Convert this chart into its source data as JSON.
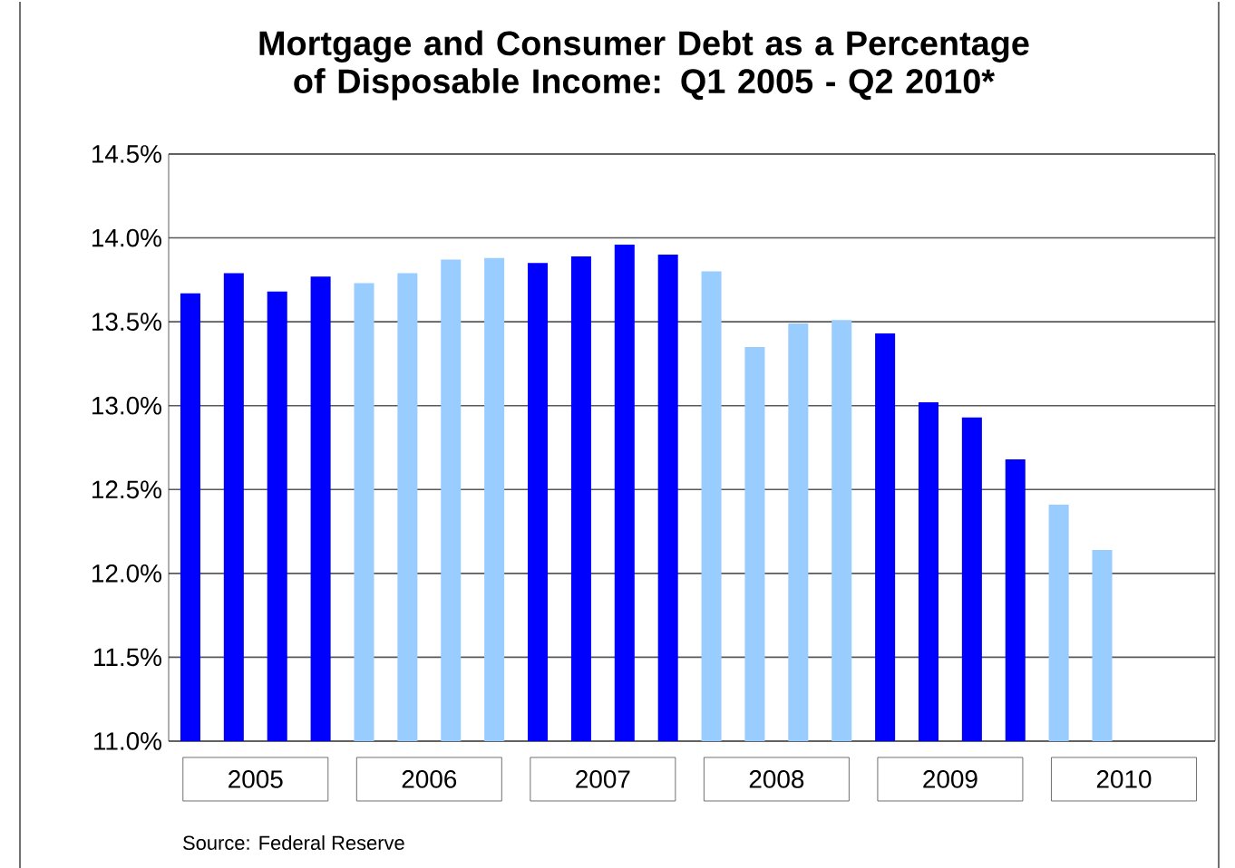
{
  "chart_data": {
    "type": "bar",
    "title": "Mortgage and Consumer Debt as a Percentage of Disposable Income: Q1 2005 - Q2 2010*",
    "categories": [
      "2005",
      "2006",
      "2007",
      "2008",
      "2009",
      "2010"
    ],
    "series": [
      {
        "values": [
          13.67,
          13.73,
          13.85,
          13.8,
          13.43,
          12.41
        ],
        "colors": [
          "#0000ff",
          "#99ccff",
          "#0000ff",
          "#99ccff",
          "#0000ff",
          "#99ccff"
        ]
      },
      {
        "values": [
          13.79,
          13.79,
          13.89,
          13.35,
          13.02,
          12.14
        ],
        "colors": [
          "#0000ff",
          "#99ccff",
          "#0000ff",
          "#99ccff",
          "#0000ff",
          "#99ccff"
        ]
      },
      {
        "values": [
          13.68,
          13.87,
          13.96,
          13.49,
          12.93,
          null
        ],
        "colors": [
          "#0000ff",
          "#99ccff",
          "#0000ff",
          "#99ccff",
          "#0000ff",
          "#99ccff"
        ]
      },
      {
        "values": [
          13.77,
          13.88,
          13.9,
          13.51,
          12.68,
          null
        ],
        "colors": [
          "#0000ff",
          "#99ccff",
          "#0000ff",
          "#99ccff",
          "#0000ff",
          "#99ccff"
        ]
      }
    ],
    "ylim": [
      11.0,
      14.5
    ],
    "yticks": [
      {
        "value": 11.0,
        "label": "11.0%"
      },
      {
        "value": 11.5,
        "label": "11.5%"
      },
      {
        "value": 12.0,
        "label": "12.0%"
      },
      {
        "value": 12.5,
        "label": "12.5%"
      },
      {
        "value": 13.0,
        "label": "13.0%"
      },
      {
        "value": 13.5,
        "label": "13.5%"
      },
      {
        "value": 14.0,
        "label": "14.0%"
      },
      {
        "value": 14.5,
        "label": "14.5%"
      }
    ],
    "grid": "y",
    "annotations": [
      "Source: Federal Reserve"
    ]
  }
}
